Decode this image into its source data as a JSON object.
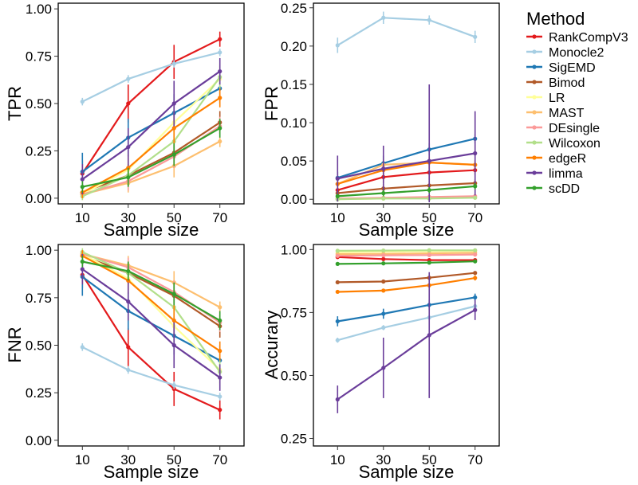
{
  "legend": {
    "title": "Method",
    "methods": [
      {
        "name": "RankCompV3",
        "color": "#e31a1c"
      },
      {
        "name": "Monocle2",
        "color": "#a6cee3"
      },
      {
        "name": "SigEMD",
        "color": "#1f78b4"
      },
      {
        "name": "Bimod",
        "color": "#b15928"
      },
      {
        "name": "LR",
        "color": "#ffff99"
      },
      {
        "name": "MAST",
        "color": "#fdbf6f"
      },
      {
        "name": "DEsingle",
        "color": "#fb9a99"
      },
      {
        "name": "Wilcoxon",
        "color": "#b2df8a"
      },
      {
        "name": "edgeR",
        "color": "#ff7f00"
      },
      {
        "name": "limma",
        "color": "#6a3d9a"
      },
      {
        "name": "scDD",
        "color": "#33a02c"
      }
    ]
  },
  "chart_data": [
    {
      "type": "line",
      "ylabel": "TPR",
      "xlabel": "Sample size",
      "x": [
        10,
        30,
        50,
        70
      ],
      "ylim": [
        -0.03,
        1.03
      ],
      "yticks": [
        0.0,
        0.25,
        0.5,
        0.75,
        1.0
      ],
      "yticklabels": [
        "0.00",
        "0.25",
        "0.50",
        "0.75",
        "1.00"
      ],
      "xticklabels": [
        "10",
        "30",
        "50",
        "70"
      ],
      "series": [
        {
          "name": "RankCompV3",
          "values": [
            0.13,
            0.5,
            0.72,
            0.84
          ],
          "err": [
            0.07,
            0.1,
            0.09,
            0.04
          ]
        },
        {
          "name": "Monocle2",
          "values": [
            0.51,
            0.63,
            0.71,
            0.77
          ],
          "err": [
            0.02,
            0.02,
            0.02,
            0.02
          ]
        },
        {
          "name": "SigEMD",
          "values": [
            0.14,
            0.32,
            0.45,
            0.58
          ],
          "err": [
            0.1,
            0.1,
            0.1,
            0.08
          ]
        },
        {
          "name": "Bimod",
          "values": [
            0.03,
            0.12,
            0.24,
            0.4
          ],
          "err": [
            0.03,
            0.06,
            0.07,
            0.06
          ]
        },
        {
          "name": "LR",
          "values": [
            0.02,
            0.15,
            0.4,
            0.63
          ],
          "err": [
            0.03,
            0.06,
            0.09,
            0.08
          ]
        },
        {
          "name": "MAST",
          "values": [
            0.02,
            0.08,
            0.17,
            0.3
          ],
          "err": [
            0.02,
            0.05,
            0.06,
            0.03
          ]
        },
        {
          "name": "DEsingle",
          "values": [
            0.02,
            0.09,
            0.22,
            0.38
          ],
          "err": [
            0.02,
            0.05,
            0.06,
            0.05
          ]
        },
        {
          "name": "Wilcoxon",
          "values": [
            0.01,
            0.12,
            0.3,
            0.64
          ],
          "err": [
            0.02,
            0.06,
            0.08,
            0.06
          ]
        },
        {
          "name": "edgeR",
          "values": [
            0.03,
            0.16,
            0.37,
            0.53
          ],
          "err": [
            0.03,
            0.07,
            0.08,
            0.05
          ]
        },
        {
          "name": "limma",
          "values": [
            0.1,
            0.27,
            0.5,
            0.67
          ],
          "err": [
            0.08,
            0.1,
            0.12,
            0.07
          ]
        },
        {
          "name": "scDD",
          "values": [
            0.06,
            0.11,
            0.23,
            0.37
          ],
          "err": [
            0.03,
            0.05,
            0.06,
            0.05
          ]
        }
      ]
    },
    {
      "type": "line",
      "ylabel": "FPR",
      "xlabel": "Sample size",
      "x": [
        10,
        30,
        50,
        70
      ],
      "ylim": [
        -0.006,
        0.256
      ],
      "yticks": [
        0.0,
        0.05,
        0.1,
        0.15,
        0.2,
        0.25
      ],
      "yticklabels": [
        "0.00",
        "0.05",
        "0.10",
        "0.15",
        "0.20",
        "0.25"
      ],
      "xticklabels": [
        "10",
        "30",
        "50",
        "70"
      ],
      "series": [
        {
          "name": "RankCompV3",
          "values": [
            0.012,
            0.029,
            0.035,
            0.038
          ],
          "err": [
            0.006,
            0.008,
            0.01,
            0.006
          ]
        },
        {
          "name": "Monocle2",
          "values": [
            0.201,
            0.237,
            0.234,
            0.212
          ],
          "err": [
            0.01,
            0.008,
            0.006,
            0.008
          ]
        },
        {
          "name": "SigEMD",
          "values": [
            0.028,
            0.047,
            0.065,
            0.079
          ],
          "err": [
            0.008,
            0.01,
            0.008,
            0.006
          ]
        },
        {
          "name": "Bimod",
          "values": [
            0.008,
            0.014,
            0.018,
            0.021
          ],
          "err": [
            0.005,
            0.006,
            0.006,
            0.005
          ]
        },
        {
          "name": "LR",
          "values": [
            0.0,
            0.001,
            0.002,
            0.002
          ],
          "err": [
            0.001,
            0.001,
            0.001,
            0.001
          ]
        },
        {
          "name": "MAST",
          "values": [
            0.02,
            0.045,
            0.048,
            0.045
          ],
          "err": [
            0.006,
            0.008,
            0.008,
            0.006
          ]
        },
        {
          "name": "DEsingle",
          "values": [
            0.001,
            0.002,
            0.003,
            0.004
          ],
          "err": [
            0.001,
            0.001,
            0.001,
            0.001
          ]
        },
        {
          "name": "Wilcoxon",
          "values": [
            0.0,
            0.001,
            0.001,
            0.002
          ],
          "err": [
            0.001,
            0.001,
            0.001,
            0.001
          ]
        },
        {
          "name": "edgeR",
          "values": [
            0.02,
            0.038,
            0.048,
            0.045
          ],
          "err": [
            0.006,
            0.008,
            0.008,
            0.006
          ]
        },
        {
          "name": "limma",
          "values": [
            0.027,
            0.04,
            0.05,
            0.06
          ],
          "err": [
            0.03,
            0.03,
            0.1,
            0.055
          ]
        },
        {
          "name": "scDD",
          "values": [
            0.004,
            0.008,
            0.012,
            0.017
          ],
          "err": [
            0.003,
            0.004,
            0.004,
            0.004
          ]
        }
      ]
    },
    {
      "type": "line",
      "ylabel": "FNR",
      "xlabel": "Sample size",
      "x": [
        10,
        30,
        50,
        70
      ],
      "ylim": [
        -0.03,
        1.03
      ],
      "yticks": [
        0.0,
        0.25,
        0.5,
        0.75,
        1.0
      ],
      "yticklabels": [
        "0.00",
        "0.25",
        "0.50",
        "0.75",
        "1.00"
      ],
      "xticklabels": [
        "10",
        "30",
        "50",
        "70"
      ],
      "series": [
        {
          "name": "RankCompV3",
          "values": [
            0.87,
            0.49,
            0.27,
            0.16
          ],
          "err": [
            0.07,
            0.1,
            0.09,
            0.05
          ]
        },
        {
          "name": "Monocle2",
          "values": [
            0.49,
            0.37,
            0.29,
            0.23
          ],
          "err": [
            0.02,
            0.02,
            0.02,
            0.02
          ]
        },
        {
          "name": "SigEMD",
          "values": [
            0.86,
            0.68,
            0.55,
            0.42
          ],
          "err": [
            0.1,
            0.1,
            0.1,
            0.08
          ]
        },
        {
          "name": "Bimod",
          "values": [
            0.97,
            0.88,
            0.76,
            0.6
          ],
          "err": [
            0.03,
            0.06,
            0.07,
            0.06
          ]
        },
        {
          "name": "LR",
          "values": [
            0.98,
            0.85,
            0.6,
            0.37
          ],
          "err": [
            0.03,
            0.06,
            0.09,
            0.08
          ]
        },
        {
          "name": "MAST",
          "values": [
            0.98,
            0.92,
            0.83,
            0.7
          ],
          "err": [
            0.02,
            0.05,
            0.06,
            0.03
          ]
        },
        {
          "name": "DEsingle",
          "values": [
            0.98,
            0.91,
            0.78,
            0.62
          ],
          "err": [
            0.02,
            0.05,
            0.06,
            0.05
          ]
        },
        {
          "name": "Wilcoxon",
          "values": [
            0.99,
            0.88,
            0.7,
            0.36
          ],
          "err": [
            0.02,
            0.06,
            0.08,
            0.06
          ]
        },
        {
          "name": "edgeR",
          "values": [
            0.97,
            0.84,
            0.63,
            0.47
          ],
          "err": [
            0.03,
            0.07,
            0.08,
            0.05
          ]
        },
        {
          "name": "limma",
          "values": [
            0.9,
            0.73,
            0.5,
            0.33
          ],
          "err": [
            0.08,
            0.1,
            0.12,
            0.07
          ]
        },
        {
          "name": "scDD",
          "values": [
            0.94,
            0.89,
            0.77,
            0.63
          ],
          "err": [
            0.03,
            0.05,
            0.06,
            0.05
          ]
        }
      ]
    },
    {
      "type": "line",
      "ylabel": "Accurary",
      "xlabel": "Sample size",
      "x": [
        10,
        30,
        50,
        70
      ],
      "ylim": [
        0.22,
        1.02
      ],
      "yticks": [
        0.25,
        0.5,
        0.75,
        1.0
      ],
      "yticklabels": [
        "0.25",
        "0.50",
        "0.75",
        "1.00"
      ],
      "xticklabels": [
        "10",
        "30",
        "50",
        "70"
      ],
      "series": [
        {
          "name": "RankCompV3",
          "values": [
            0.97,
            0.962,
            0.958,
            0.958
          ],
          "err": [
            0.005,
            0.006,
            0.006,
            0.005
          ]
        },
        {
          "name": "Monocle2",
          "values": [
            0.64,
            0.69,
            0.73,
            0.775
          ],
          "err": [
            0.01,
            0.01,
            0.01,
            0.01
          ]
        },
        {
          "name": "SigEMD",
          "values": [
            0.715,
            0.745,
            0.78,
            0.81
          ],
          "err": [
            0.02,
            0.02,
            0.02,
            0.015
          ]
        },
        {
          "name": "Bimod",
          "values": [
            0.87,
            0.873,
            0.888,
            0.907
          ],
          "err": [
            0.005,
            0.005,
            0.006,
            0.006
          ]
        },
        {
          "name": "LR",
          "values": [
            0.99,
            0.992,
            0.993,
            0.995
          ],
          "err": [
            0.002,
            0.002,
            0.002,
            0.002
          ]
        },
        {
          "name": "MAST",
          "values": [
            0.982,
            0.983,
            0.985,
            0.987
          ],
          "err": [
            0.003,
            0.003,
            0.003,
            0.003
          ]
        },
        {
          "name": "DEsingle",
          "values": [
            0.975,
            0.977,
            0.978,
            0.98
          ],
          "err": [
            0.003,
            0.003,
            0.003,
            0.003
          ]
        },
        {
          "name": "Wilcoxon",
          "values": [
            0.995,
            0.996,
            0.997,
            0.997
          ],
          "err": [
            0.002,
            0.002,
            0.002,
            0.002
          ]
        },
        {
          "name": "edgeR",
          "values": [
            0.832,
            0.837,
            0.858,
            0.887
          ],
          "err": [
            0.006,
            0.006,
            0.008,
            0.01
          ]
        },
        {
          "name": "limma",
          "values": [
            0.405,
            0.53,
            0.66,
            0.76
          ],
          "err": [
            0.055,
            0.12,
            0.25,
            0.04
          ]
        },
        {
          "name": "scDD",
          "values": [
            0.943,
            0.945,
            0.948,
            0.953
          ],
          "err": [
            0.004,
            0.004,
            0.004,
            0.004
          ]
        }
      ]
    }
  ]
}
